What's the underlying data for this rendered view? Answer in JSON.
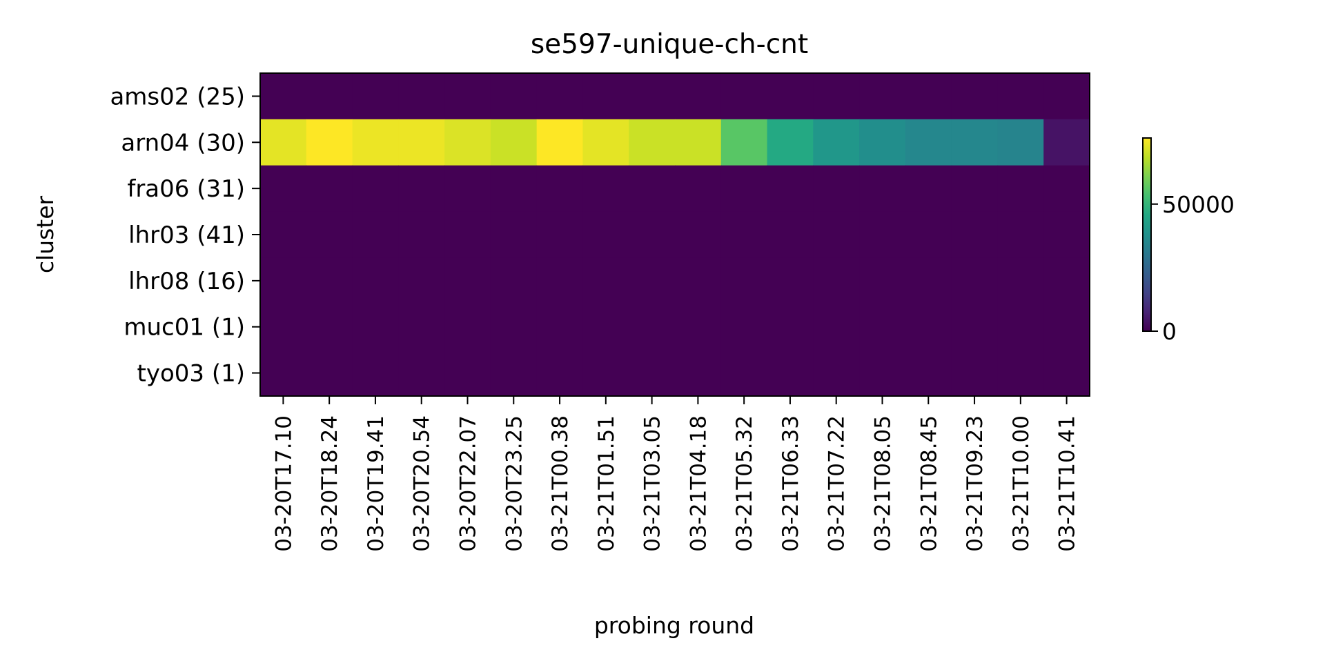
{
  "chart_data": {
    "type": "heatmap",
    "title": "se597-unique-ch-cnt",
    "xlabel": "probing round",
    "ylabel": "cluster",
    "x_categories": [
      "03-20T17.10",
      "03-20T18.24",
      "03-20T19.41",
      "03-20T20.54",
      "03-20T22.07",
      "03-20T23.25",
      "03-21T00.38",
      "03-21T01.51",
      "03-21T03.05",
      "03-21T04.18",
      "03-21T05.32",
      "03-21T06.33",
      "03-21T07.22",
      "03-21T08.05",
      "03-21T08.45",
      "03-21T09.23",
      "03-21T10.00",
      "03-21T10.41"
    ],
    "y_categories": [
      "ams02 (25)",
      "arn04 (30)",
      "fra06 (31)",
      "lhr03 (41)",
      "lhr08 (16)",
      "muc01 (1)",
      "tyo03 (1)"
    ],
    "values": [
      [
        0,
        0,
        0,
        0,
        0,
        0,
        0,
        0,
        0,
        0,
        0,
        0,
        0,
        0,
        0,
        0,
        0,
        0
      ],
      [
        73000,
        76000,
        74000,
        74000,
        72000,
        70000,
        76000,
        73000,
        70000,
        70000,
        56000,
        46000,
        40000,
        37000,
        35000,
        35000,
        34000,
        4000
      ],
      [
        0,
        0,
        0,
        0,
        0,
        0,
        0,
        0,
        0,
        0,
        0,
        0,
        0,
        0,
        0,
        0,
        0,
        0
      ],
      [
        0,
        0,
        0,
        0,
        0,
        0,
        0,
        0,
        0,
        0,
        0,
        0,
        0,
        0,
        0,
        0,
        0,
        0
      ],
      [
        0,
        0,
        0,
        0,
        0,
        0,
        0,
        0,
        0,
        0,
        0,
        0,
        0,
        0,
        0,
        0,
        0,
        0
      ],
      [
        0,
        0,
        0,
        0,
        0,
        0,
        0,
        0,
        0,
        0,
        0,
        0,
        0,
        0,
        0,
        0,
        0,
        0
      ],
      [
        0,
        0,
        0,
        0,
        0,
        0,
        0,
        0,
        0,
        0,
        0,
        0,
        0,
        0,
        0,
        0,
        0,
        0
      ]
    ],
    "colormap": "viridis",
    "colorbar": {
      "range": [
        0,
        76000
      ],
      "ticks": [
        0,
        50000
      ],
      "tick_labels": [
        "0",
        "50000"
      ]
    },
    "grid": false
  }
}
